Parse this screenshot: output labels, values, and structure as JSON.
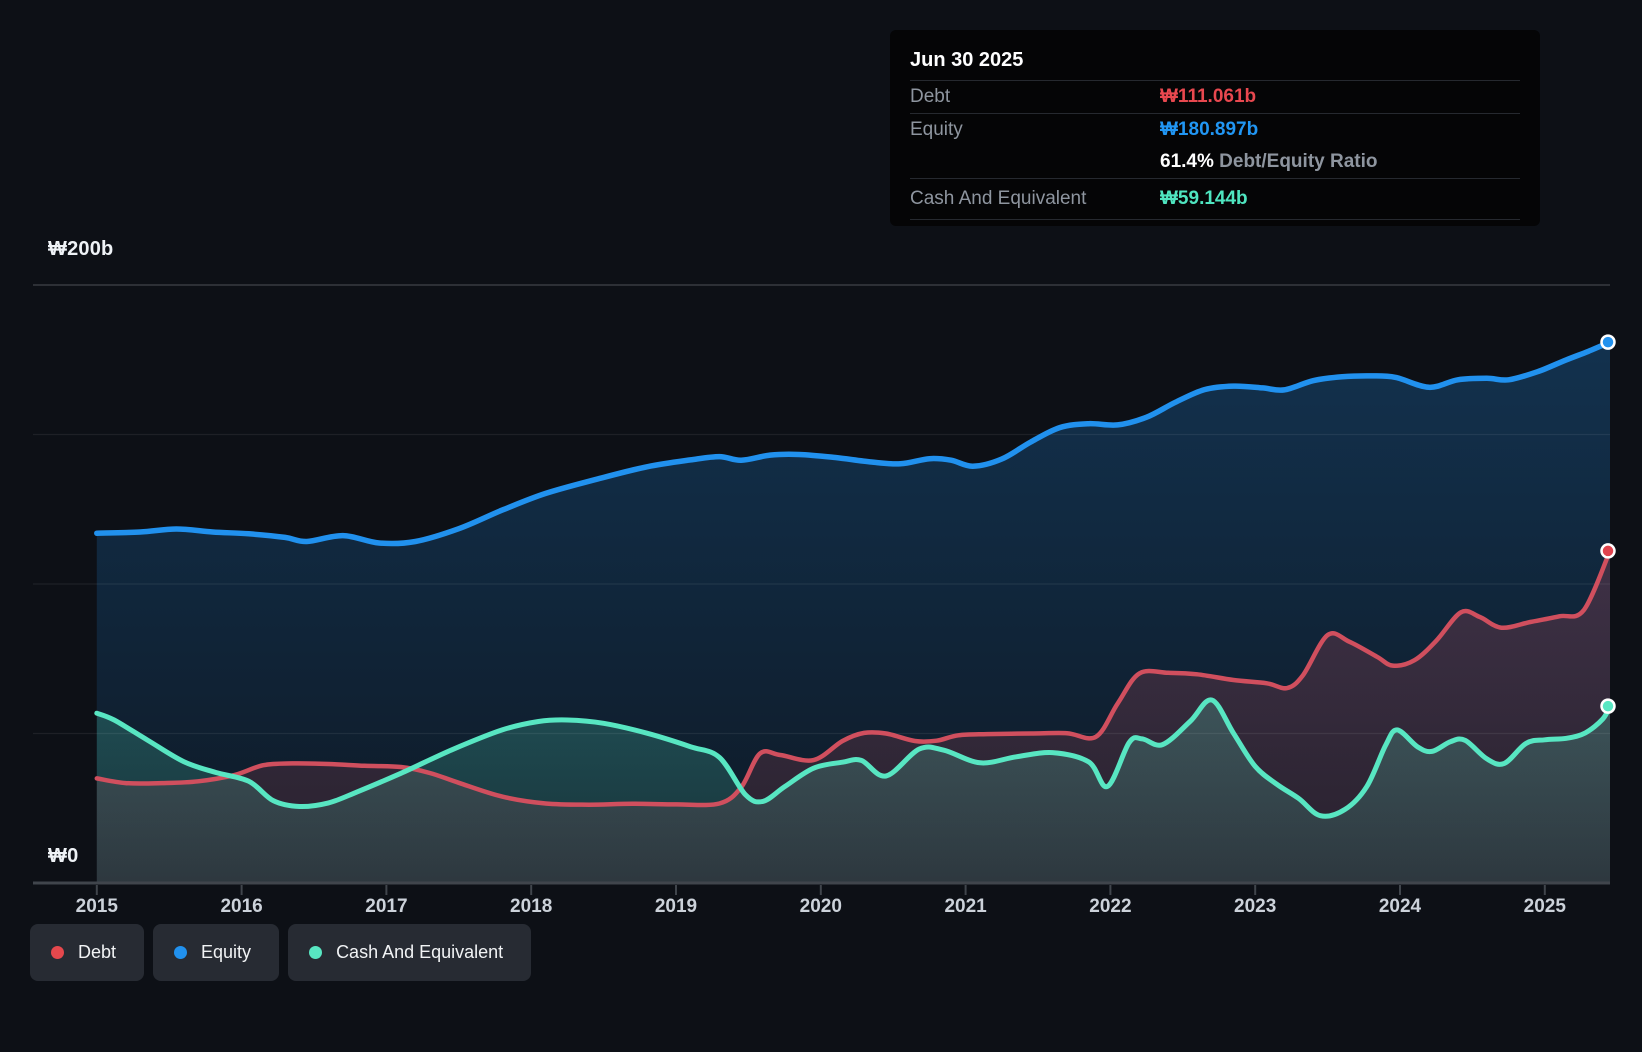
{
  "tooltip": {
    "date": "Jun 30 2025",
    "rows": [
      {
        "label": "Debt",
        "value": "₩111.061b",
        "key": "debt"
      },
      {
        "label": "Equity",
        "value": "₩180.897b",
        "key": "equity"
      },
      {
        "label": "Cash And Equivalent",
        "value": "₩59.144b",
        "key": "cash"
      }
    ],
    "ratio": {
      "value": "61.4%",
      "label": "Debt/Equity Ratio"
    }
  },
  "y_axis": {
    "top_label": "₩200b",
    "bottom_label": "₩0"
  },
  "legend": {
    "items": [
      {
        "label": "Debt",
        "color": "#e5484d"
      },
      {
        "label": "Equity",
        "color": "#2191ee"
      },
      {
        "label": "Cash And Equivalent",
        "color": "#58e6c2"
      }
    ]
  },
  "chart_data": {
    "type": "area",
    "unit": "₩ billions",
    "x_ticks": [
      2015,
      2016,
      2017,
      2018,
      2019,
      2020,
      2021,
      2022,
      2023,
      2024,
      2025
    ],
    "x_range": [
      2015.0,
      2025.45
    ],
    "ylim": [
      0,
      200
    ],
    "y_gridlines_b": [
      50,
      100,
      150
    ],
    "y_top_gridline_b": 200,
    "legend_position": "bottom-left",
    "series": [
      {
        "name": "Equity",
        "color": "#2191ee",
        "dot_color": "#2191ee",
        "line_width": 5.5,
        "last_value_label": "₩180.897b",
        "points": [
          [
            2015.0,
            117
          ],
          [
            2015.3,
            117.4
          ],
          [
            2015.55,
            118.4
          ],
          [
            2015.8,
            117.4
          ],
          [
            2016.05,
            116.8
          ],
          [
            2016.3,
            115.6
          ],
          [
            2016.45,
            114.2
          ],
          [
            2016.7,
            116.2
          ],
          [
            2016.95,
            113.7
          ],
          [
            2017.2,
            114.2
          ],
          [
            2017.5,
            118.5
          ],
          [
            2017.8,
            124.7
          ],
          [
            2018.1,
            130.3
          ],
          [
            2018.45,
            135
          ],
          [
            2018.8,
            139.2
          ],
          [
            2019.1,
            141.5
          ],
          [
            2019.3,
            142.6
          ],
          [
            2019.45,
            141.4
          ],
          [
            2019.65,
            143.1
          ],
          [
            2019.85,
            143.3
          ],
          [
            2020.1,
            142.3
          ],
          [
            2020.35,
            140.8
          ],
          [
            2020.55,
            140.2
          ],
          [
            2020.75,
            141.9
          ],
          [
            2020.9,
            141.4
          ],
          [
            2021.05,
            139.4
          ],
          [
            2021.25,
            141.8
          ],
          [
            2021.45,
            147.5
          ],
          [
            2021.65,
            152.3
          ],
          [
            2021.85,
            153.6
          ],
          [
            2022.05,
            153.2
          ],
          [
            2022.25,
            155.8
          ],
          [
            2022.45,
            160.8
          ],
          [
            2022.65,
            165
          ],
          [
            2022.85,
            166.2
          ],
          [
            2023.05,
            165.6
          ],
          [
            2023.2,
            164.9
          ],
          [
            2023.4,
            168
          ],
          [
            2023.6,
            169.3
          ],
          [
            2023.8,
            169.6
          ],
          [
            2023.97,
            169.1
          ],
          [
            2024.2,
            165.8
          ],
          [
            2024.4,
            168.3
          ],
          [
            2024.6,
            168.8
          ],
          [
            2024.75,
            168.3
          ],
          [
            2024.95,
            171
          ],
          [
            2025.15,
            175
          ],
          [
            2025.3,
            177.8
          ],
          [
            2025.45,
            180.897
          ]
        ]
      },
      {
        "name": "Debt",
        "color": "#d04f5e",
        "dot_color": "#e0434e",
        "line_width": 4.5,
        "last_value_label": "₩111.061b",
        "points": [
          [
            2015.0,
            35
          ],
          [
            2015.2,
            33.4
          ],
          [
            2015.45,
            33.4
          ],
          [
            2015.7,
            34
          ],
          [
            2015.95,
            36.1
          ],
          [
            2016.15,
            39.4
          ],
          [
            2016.35,
            40
          ],
          [
            2016.6,
            39.8
          ],
          [
            2016.85,
            39.2
          ],
          [
            2017.1,
            38.8
          ],
          [
            2017.3,
            36.8
          ],
          [
            2017.5,
            33.5
          ],
          [
            2017.8,
            28.9
          ],
          [
            2018.1,
            26.6
          ],
          [
            2018.4,
            26.2
          ],
          [
            2018.7,
            26.5
          ],
          [
            2019.0,
            26.3
          ],
          [
            2019.3,
            26.6
          ],
          [
            2019.45,
            32
          ],
          [
            2019.58,
            43.3
          ],
          [
            2019.72,
            42.8
          ],
          [
            2019.95,
            41.1
          ],
          [
            2020.15,
            47.5
          ],
          [
            2020.3,
            50.2
          ],
          [
            2020.45,
            50
          ],
          [
            2020.65,
            47.5
          ],
          [
            2020.8,
            47.6
          ],
          [
            2020.95,
            49.4
          ],
          [
            2021.15,
            49.8
          ],
          [
            2021.45,
            50
          ],
          [
            2021.7,
            50.1
          ],
          [
            2021.9,
            48.9
          ],
          [
            2022.05,
            60
          ],
          [
            2022.2,
            70.1
          ],
          [
            2022.4,
            70.3
          ],
          [
            2022.6,
            69.8
          ],
          [
            2022.85,
            67.9
          ],
          [
            2023.08,
            66.8
          ],
          [
            2023.22,
            65.2
          ],
          [
            2023.33,
            69.5
          ],
          [
            2023.5,
            82.9
          ],
          [
            2023.65,
            80.7
          ],
          [
            2023.84,
            75.7
          ],
          [
            2023.95,
            72.7
          ],
          [
            2024.1,
            74.5
          ],
          [
            2024.25,
            81
          ],
          [
            2024.42,
            90.5
          ],
          [
            2024.55,
            89
          ],
          [
            2024.7,
            85.4
          ],
          [
            2024.9,
            87.3
          ],
          [
            2025.1,
            89.2
          ],
          [
            2025.27,
            91.3
          ],
          [
            2025.45,
            111.061
          ]
        ]
      },
      {
        "name": "Cash And Equivalent",
        "color": "#58e6c2",
        "dot_color": "#58e6c2",
        "line_width": 5,
        "last_value_label": "₩59.144b",
        "points": [
          [
            2015.0,
            56.8
          ],
          [
            2015.12,
            54.5
          ],
          [
            2015.35,
            47.8
          ],
          [
            2015.6,
            40.6
          ],
          [
            2015.82,
            37
          ],
          [
            2016.05,
            34
          ],
          [
            2016.22,
            27.5
          ],
          [
            2016.4,
            25.6
          ],
          [
            2016.6,
            26.8
          ],
          [
            2016.8,
            30.5
          ],
          [
            2017.1,
            36.7
          ],
          [
            2017.45,
            44.5
          ],
          [
            2017.8,
            51.2
          ],
          [
            2018.05,
            54
          ],
          [
            2018.25,
            54.5
          ],
          [
            2018.5,
            53.4
          ],
          [
            2018.8,
            50.1
          ],
          [
            2019.1,
            45.6
          ],
          [
            2019.3,
            42
          ],
          [
            2019.48,
            29.5
          ],
          [
            2019.6,
            27.3
          ],
          [
            2019.75,
            32.2
          ],
          [
            2019.95,
            38.4
          ],
          [
            2020.15,
            40.4
          ],
          [
            2020.28,
            41
          ],
          [
            2020.45,
            35.8
          ],
          [
            2020.68,
            44.8
          ],
          [
            2020.85,
            44.4
          ],
          [
            2021.1,
            40.2
          ],
          [
            2021.35,
            42.2
          ],
          [
            2021.6,
            43.6
          ],
          [
            2021.85,
            40.5
          ],
          [
            2021.98,
            32.3
          ],
          [
            2022.13,
            47
          ],
          [
            2022.22,
            48.2
          ],
          [
            2022.36,
            46.3
          ],
          [
            2022.55,
            54
          ],
          [
            2022.7,
            61.2
          ],
          [
            2022.85,
            50.1
          ],
          [
            2023.0,
            39
          ],
          [
            2023.15,
            33
          ],
          [
            2023.3,
            28.3
          ],
          [
            2023.45,
            22.5
          ],
          [
            2023.62,
            24.6
          ],
          [
            2023.77,
            32.2
          ],
          [
            2023.9,
            46
          ],
          [
            2023.98,
            51.2
          ],
          [
            2024.12,
            45.6
          ],
          [
            2024.22,
            44
          ],
          [
            2024.35,
            47.3
          ],
          [
            2024.45,
            47.7
          ],
          [
            2024.6,
            41.5
          ],
          [
            2024.72,
            40
          ],
          [
            2024.87,
            46.7
          ],
          [
            2025.0,
            47.9
          ],
          [
            2025.15,
            48.4
          ],
          [
            2025.28,
            50.2
          ],
          [
            2025.4,
            54.8
          ],
          [
            2025.45,
            59.144
          ]
        ]
      }
    ]
  }
}
